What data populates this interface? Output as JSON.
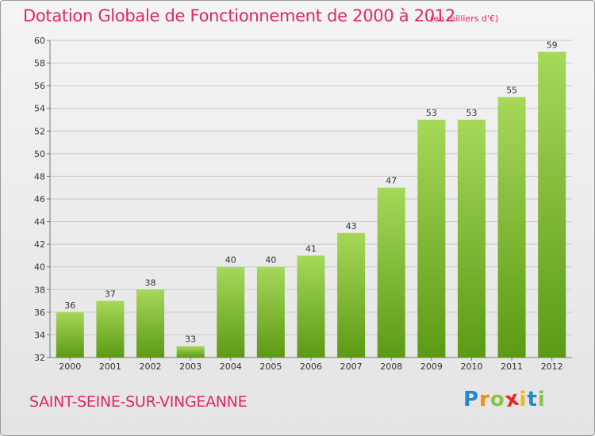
{
  "header": {
    "title": "Dotation Globale de Fonctionnement de 2000 à 2012",
    "unit_note": "(en milliers d'€)"
  },
  "commune_name": "SAINT-SEINE-SUR-VINGEANNE",
  "logo": {
    "letters": [
      "P",
      "r",
      "o",
      "x",
      "i",
      "t",
      "i"
    ],
    "colors": [
      "#2a86c9",
      "#f28b1a",
      "#8bc34a",
      "#e02a2a",
      "#f2b51a",
      "#2a86c9",
      "#8bc34a"
    ]
  },
  "colors": {
    "accent": "#e0285e",
    "bar_top": "#a6d85a",
    "bar_bottom": "#5c9a14"
  },
  "chart_data": {
    "type": "bar",
    "title": "Dotation Globale de Fonctionnement de 2000 à 2012",
    "subtitle": "(en milliers d'€)",
    "xlabel": "",
    "ylabel": "",
    "categories": [
      "2000",
      "2001",
      "2002",
      "2003",
      "2004",
      "2005",
      "2006",
      "2007",
      "2008",
      "2009",
      "2010",
      "2011",
      "2012"
    ],
    "values": [
      36,
      37,
      38,
      33,
      40,
      40,
      41,
      43,
      47,
      53,
      53,
      55,
      59
    ],
    "ylim": [
      32,
      60
    ],
    "yticks": [
      32,
      34,
      36,
      38,
      40,
      42,
      44,
      46,
      48,
      50,
      52,
      54,
      56,
      58,
      60
    ],
    "grid": true,
    "legend": "none"
  }
}
